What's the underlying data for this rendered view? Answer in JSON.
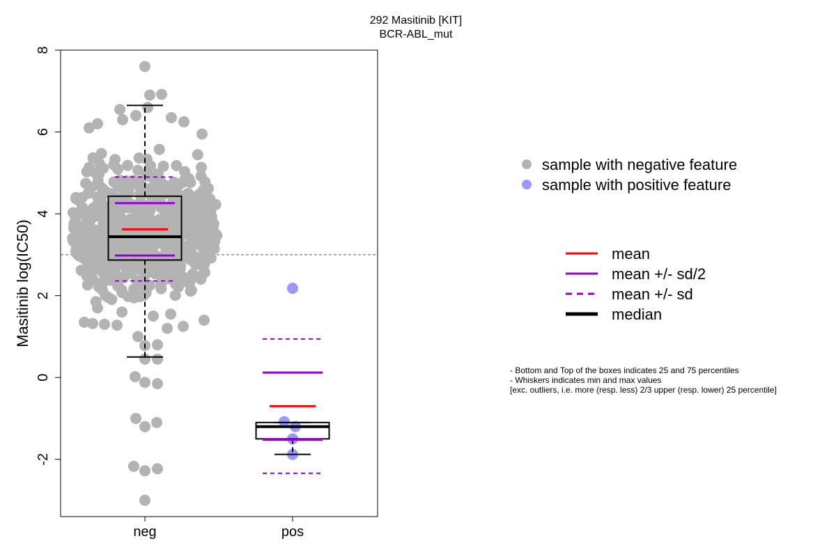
{
  "chart_data": {
    "type": "boxplot",
    "title": [
      "292 Masitinib [KIT]",
      "BCR-ABL_mut"
    ],
    "ylabel": "Masitinib log(IC50)",
    "xlabel": "",
    "categories": [
      "neg",
      "pos"
    ],
    "ylim": [
      -3.4,
      8
    ],
    "yticks": [
      -2,
      0,
      2,
      4,
      6,
      8
    ],
    "reference_line": 3,
    "groups": [
      {
        "name": "neg",
        "point_color": "#b3b3b3",
        "box": {
          "q1": 2.87,
          "median": 3.44,
          "q3": 4.43,
          "whisker_low": 0.5,
          "whisker_high": 6.65
        },
        "mean": 3.62,
        "mean_plus_half_sd": 4.26,
        "mean_minus_half_sd": 2.98,
        "mean_plus_sd": 4.9,
        "mean_minus_sd": 2.36,
        "outliers": [
          0.02,
          -0.12,
          -0.15,
          -1.0,
          -1.1,
          -1.2,
          -2.17,
          -2.23,
          -2.28,
          -3.0,
          7.6
        ]
      },
      {
        "name": "pos",
        "point_color": "#9999ff",
        "box": {
          "q1": -1.5,
          "median": -1.2,
          "q3": -1.1,
          "whisker_low": -1.88,
          "whisker_high": -1.1
        },
        "mean": -0.7,
        "mean_plus_half_sd": 0.12,
        "mean_minus_half_sd": -1.52,
        "mean_plus_sd": 0.94,
        "mean_minus_sd": -2.34,
        "points": [
          2.18,
          -1.08,
          -1.2,
          -1.5,
          -1.88
        ]
      }
    ],
    "legend_points": [
      {
        "label": "sample with negative feature",
        "color": "#b3b3b3"
      },
      {
        "label": "sample with positive feature",
        "color": "#9999ff"
      }
    ],
    "legend_lines": [
      {
        "label": "mean",
        "color": "#ff0000",
        "style": "solid",
        "weight": "normal"
      },
      {
        "label": "mean +/- sd/2",
        "color": "#9400d3",
        "style": "solid",
        "weight": "normal"
      },
      {
        "label": "mean +/- sd",
        "color": "#9400d3",
        "style": "dashed",
        "weight": "normal"
      },
      {
        "label": "median",
        "color": "#000000",
        "style": "solid",
        "weight": "bold"
      }
    ],
    "notes": [
      "- Bottom and Top of the boxes indicates 25 and 75 percentiles",
      "- Whiskers indicates min and max values",
      "[exc. outliers, i.e. more (resp. less) 2/3 upper (resp. lower) 25 percentile]"
    ]
  }
}
